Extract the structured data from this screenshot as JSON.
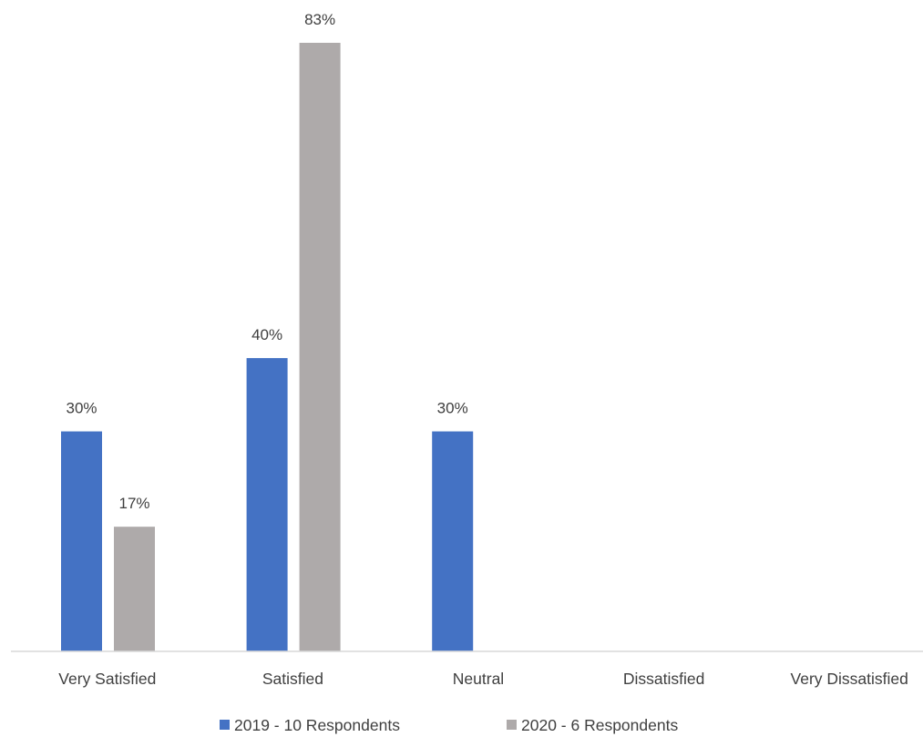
{
  "chart_data": {
    "type": "bar",
    "categories": [
      "Very Satisfied",
      "Satisfied",
      "Neutral",
      "Dissatisfied",
      "Very Dissatisfied"
    ],
    "series": [
      {
        "name": "2019 - 10 Respondents",
        "color": "#4472c4",
        "values": [
          30,
          40,
          30,
          null,
          null
        ],
        "labels": [
          "30%",
          "40%",
          "30%",
          "",
          ""
        ]
      },
      {
        "name": "2020 - 6 Respondents",
        "color": "#aeaaaa",
        "values": [
          17,
          83,
          null,
          null,
          null
        ],
        "labels": [
          "17%",
          "83%",
          "",
          "",
          ""
        ]
      }
    ],
    "ylim": [
      0,
      83
    ],
    "unit": "%",
    "grid": false,
    "legend_position": "bottom",
    "axis_color": "#d9d9d9"
  }
}
